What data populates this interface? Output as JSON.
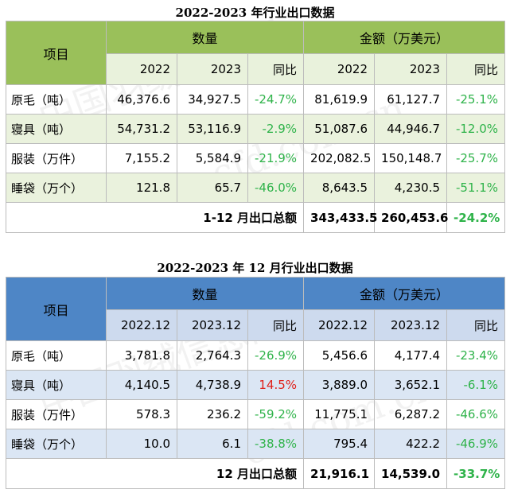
{
  "table1": {
    "title": "2022-2023 年行业出口数据",
    "col_item": "项目",
    "group_qty": "数量",
    "group_amt": "金额（万美元）",
    "sub": [
      "2022",
      "2023",
      "同比",
      "2022",
      "2023",
      "同比"
    ],
    "rows": [
      {
        "item": "原毛（吨）",
        "q2022": "46,376.6",
        "q2023": "34,927.5",
        "qyoy": "-24.7%",
        "a2022": "81,619.9",
        "a2023": "61,127.7",
        "ayoy": "-25.1%"
      },
      {
        "item": "寝具（吨）",
        "q2022": "54,731.2",
        "q2023": "53,116.9",
        "qyoy": "-2.9%",
        "a2022": "51,087.6",
        "a2023": "44,946.7",
        "ayoy": "-12.0%"
      },
      {
        "item": "服装（万件）",
        "q2022": "7,155.2",
        "q2023": "5,584.9",
        "qyoy": "-21.9%",
        "a2022": "202,082.5",
        "a2023": "150,148.7",
        "ayoy": "-25.7%"
      },
      {
        "item": "睡袋（万个）",
        "q2022": "121.8",
        "q2023": "65.7",
        "qyoy": "-46.0%",
        "a2022": "8,643.5",
        "a2023": "4,230.5",
        "ayoy": "-51.1%"
      }
    ],
    "total": {
      "label": "1-12 月出口总额",
      "a2022": "343,433.5",
      "a2023": "260,453.6",
      "yoy": "-24.2%"
    }
  },
  "table2": {
    "title": "2022-2023 年 12 月行业出口数据",
    "col_item": "项目",
    "group_qty": "数量",
    "group_amt": "金额（万美元）",
    "sub": [
      "2022.12",
      "2023.12",
      "同比",
      "2022.12",
      "2023.12",
      "同比"
    ],
    "rows": [
      {
        "item": "原毛（吨）",
        "q2022": "3,781.8",
        "q2023": "2,764.3",
        "qyoy": "-26.9%",
        "a2022": "5,456.6",
        "a2023": "4,177.4",
        "ayoy": "-23.4%"
      },
      {
        "item": "寝具（吨）",
        "q2022": "4,140.5",
        "q2023": "4,738.9",
        "qyoy": "14.5%",
        "a2022": "3,889.0",
        "a2023": "3,652.1",
        "ayoy": "-6.1%"
      },
      {
        "item": "服装（万件）",
        "q2022": "578.3",
        "q2023": "236.2",
        "qyoy": "-59.2%",
        "a2022": "11,775.1",
        "a2023": "6,287.2",
        "ayoy": "-46.6%"
      },
      {
        "item": "睡袋（万个）",
        "q2022": "10.0",
        "q2023": "6.1",
        "qyoy": "-38.8%",
        "a2022": "795.4",
        "a2023": "422.2",
        "ayoy": "-46.9%"
      }
    ],
    "total": {
      "label": "12 月出口总额",
      "a2022": "21,916.1",
      "a2023": "14,539.0",
      "yoy": "-33.7%"
    }
  },
  "colors": {
    "green_header": "#9ac05a",
    "blue_header": "#4e86c6",
    "negative": "#2fb34a",
    "positive": "#e0201a"
  }
}
